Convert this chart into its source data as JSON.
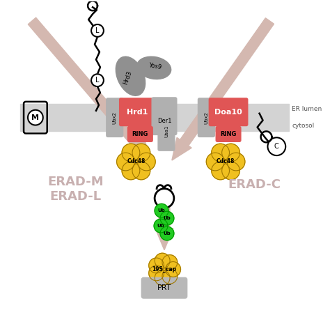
{
  "bg_color": "#ffffff",
  "er_membrane_color": "#d3d3d3",
  "arrow_color": "#d4b8b0",
  "hrd1_color": "#e05555",
  "doa10_color": "#e05555",
  "ring_color": "#e05555",
  "ubx2_color": "#b0b0b0",
  "der1_color": "#b0b0b0",
  "usa1_color": "#b0b0b0",
  "cdc48_color": "#f0c020",
  "cdc48_outline": "#a07800",
  "ub_color": "#22cc22",
  "ub_outline": "#009900",
  "prt_color": "#b8b8b8",
  "cap_color": "#f0c020",
  "hrd3_color": "#909090",
  "yos9_color": "#909090",
  "label_color": "#c8b0b0",
  "er_lumen_text": "ER lumen",
  "cytosol_text": "cytosol",
  "erad_ml_text": "ERAD-M\nERAD-L",
  "erad_c_text": "ERAD-C",
  "cdc48_text": "Cdc48",
  "ub_text": "Ub",
  "prt_text": "PRT",
  "cap_text": "19S_cap",
  "hrd1_text": "Hrd1",
  "der1_text": "Der1",
  "doa10_text": "Doa10",
  "ring_text": "RING",
  "ubx2_text": "Ubx2",
  "usa1_text": "Usa1",
  "hrd3_text": "Hrd3",
  "yos9_text": "Yos9"
}
